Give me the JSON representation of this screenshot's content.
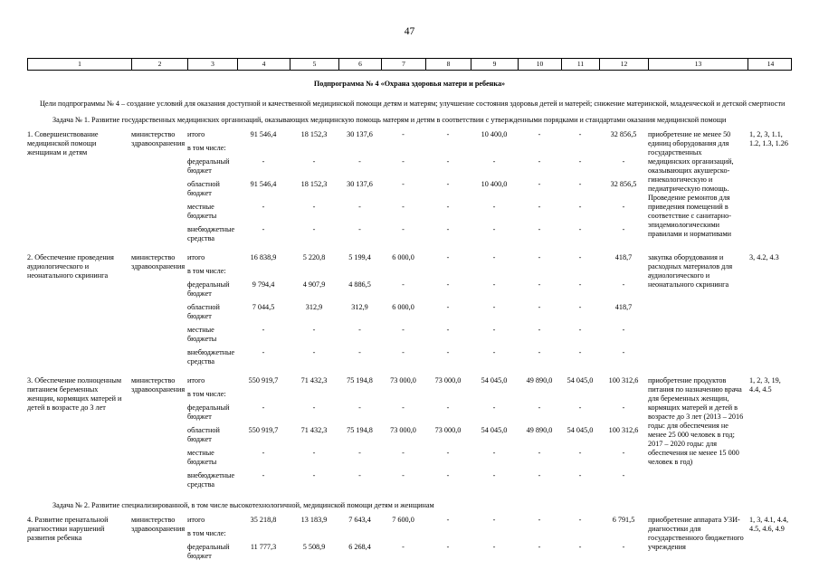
{
  "page": {
    "number": "47"
  },
  "table": {
    "column_numbers": [
      "1",
      "2",
      "3",
      "4",
      "5",
      "6",
      "7",
      "8",
      "9",
      "10",
      "11",
      "12",
      "13",
      "14"
    ],
    "title": "Подпрограмма № 4 «Охрана здоровья матери и ребенка»",
    "goals": "Цели подпрограммы № 4 – создание условий для оказания доступной и качественной медицинской помощи детям и матерям; улучшение состояния здоровья детей и матерей; снижение материнской, младенческой и детской смертности",
    "sections": [
      {
        "heading": "Задача № 1. Развитие государственных медицинских организаций, оказывающих медицинскую помощь матерям и детям в соответствии с утвержденными порядками и стандартами оказания медицинской помощи",
        "rows": [
          {
            "name": "1. Совершенствование медицинской помощи женщинам и детям",
            "ministry": "министерство здравоохранения",
            "lines": [
              {
                "label": "итого",
                "values": [
                  "91 546,4",
                  "18 152,3",
                  "30 137,6",
                  "-",
                  "-",
                  "10 400,0",
                  "-",
                  "-",
                  "32 856,5"
                ]
              },
              {
                "label": "в том числе:",
                "values": []
              },
              {
                "label": "федеральный бюджет",
                "values": [
                  "-",
                  "-",
                  "-",
                  "-",
                  "-",
                  "-",
                  "-",
                  "-",
                  "-"
                ]
              },
              {
                "label": "областной бюджет",
                "values": [
                  "91 546,4",
                  "18 152,3",
                  "30 137,6",
                  "-",
                  "-",
                  "10 400,0",
                  "-",
                  "-",
                  "32 856,5"
                ]
              },
              {
                "label": "местные бюджеты",
                "values": [
                  "-",
                  "-",
                  "-",
                  "-",
                  "-",
                  "-",
                  "-",
                  "-",
                  "-"
                ]
              },
              {
                "label": "внебюджетные средства",
                "values": [
                  "-",
                  "-",
                  "-",
                  "-",
                  "-",
                  "-",
                  "-",
                  "-",
                  "-"
                ]
              }
            ],
            "result": "приобретение не менее 50 единиц оборудования для государственных медицинских организаций, оказывающих акушерско-гинекологическую и педиатрическую помощь. Проведение ремонтов для приведения помещений в соответствие с санитарно-эпидемиологическими правилами и нормативами",
            "indicators": "1, 2, 3, 1.1, 1.2, 1.3, 1.26"
          },
          {
            "name": "2. Обеспечение проведения аудиологического и неонатального скрининга",
            "ministry": "министерство здравоохранения",
            "lines": [
              {
                "label": "итого",
                "values": [
                  "16 838,9",
                  "5 220,8",
                  "5 199,4",
                  "6 000,0",
                  "-",
                  "-",
                  "-",
                  "-",
                  "418,7"
                ]
              },
              {
                "label": "в том числе:",
                "values": []
              },
              {
                "label": "федеральный бюджет",
                "values": [
                  "9 794,4",
                  "4 907,9",
                  "4 886,5",
                  "-",
                  "-",
                  "-",
                  "-",
                  "-",
                  "-"
                ]
              },
              {
                "label": "областной бюджет",
                "values": [
                  "7 044,5",
                  "312,9",
                  "312,9",
                  "6 000,0",
                  "-",
                  "-",
                  "-",
                  "-",
                  "418,7"
                ]
              },
              {
                "label": "местные бюджеты",
                "values": [
                  "-",
                  "-",
                  "-",
                  "-",
                  "-",
                  "-",
                  "-",
                  "-",
                  "-"
                ]
              },
              {
                "label": "внебюджетные средства",
                "values": [
                  "-",
                  "-",
                  "-",
                  "-",
                  "-",
                  "-",
                  "-",
                  "-",
                  "-"
                ]
              }
            ],
            "result": "закупка оборудования и расходных материалов для аудиологического и неонатального скрининга",
            "indicators": "3, 4.2, 4.3"
          },
          {
            "name": "3. Обеспечение полноценным питанием беременных женщин, кормящих матерей и детей в возрасте до 3 лет",
            "ministry": "министерство здравоохранения",
            "lines": [
              {
                "label": "итого",
                "values": [
                  "550 919,7",
                  "71 432,3",
                  "75 194,8",
                  "73 000,0",
                  "73 000,0",
                  "54 045,0",
                  "49 890,0",
                  "54 045,0",
                  "100 312,6"
                ]
              },
              {
                "label": "в том числе:",
                "values": []
              },
              {
                "label": "федеральный бюджет",
                "values": [
                  "-",
                  "-",
                  "-",
                  "-",
                  "-",
                  "-",
                  "-",
                  "-",
                  "-"
                ]
              },
              {
                "label": "областной бюджет",
                "values": [
                  "550 919,7",
                  "71 432,3",
                  "75 194,8",
                  "73 000,0",
                  "73 000,0",
                  "54 045,0",
                  "49 890,0",
                  "54 045,0",
                  "100 312,6"
                ]
              },
              {
                "label": "местные бюджеты",
                "values": [
                  "-",
                  "-",
                  "-",
                  "-",
                  "-",
                  "-",
                  "-",
                  "-",
                  "-"
                ]
              },
              {
                "label": "внебюджетные средства",
                "values": [
                  "-",
                  "-",
                  "-",
                  "-",
                  "-",
                  "-",
                  "-",
                  "-",
                  "-"
                ]
              }
            ],
            "result": "приобретение продуктов питания по назначению врача для беременных женщин, кормящих матерей и детей в возрасте до 3 лет (2013 – 2016 годы: для обеспечения не менее 25 000 человек в год; 2017 – 2020 годы: для обеспечения не менее 15 000 человек в год)",
            "indicators": "1, 2, 3, 19, 4.4, 4.5"
          }
        ]
      },
      {
        "heading": "Задача № 2. Развитие специализированной, в том числе высокотехнологичной, медицинской помощи детям и женщинам",
        "rows": [
          {
            "name": "4. Развитие пренатальной диагностики нарушений развития ребенка",
            "ministry": "министерство здравоохранения",
            "lines": [
              {
                "label": "итого",
                "values": [
                  "35 218,8",
                  "13 183,9",
                  "7 643,4",
                  "7 600,0",
                  "-",
                  "-",
                  "-",
                  "-",
                  "6 791,5"
                ]
              },
              {
                "label": "в том числе:",
                "values": []
              },
              {
                "label": "федеральный бюджет",
                "values": [
                  "11 777,3",
                  "5 508,9",
                  "6 268,4",
                  "-",
                  "-",
                  "-",
                  "-",
                  "-",
                  "-"
                ]
              }
            ],
            "result": "приобретение аппарата УЗИ-диагностики для государственного бюджетного учреждения",
            "indicators": "1, 3, 4.1, 4.4, 4.5, 4.6, 4.9"
          }
        ]
      }
    ]
  }
}
